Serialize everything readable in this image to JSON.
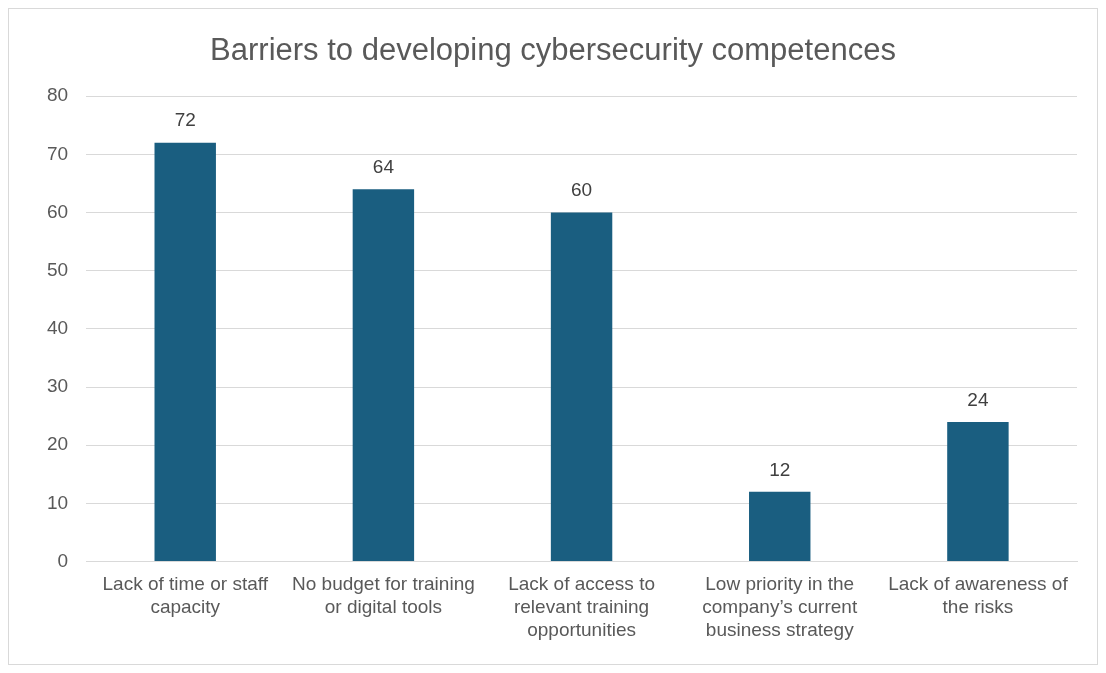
{
  "chart_data": {
    "type": "bar",
    "title": "Barriers to developing cybersecurity competences",
    "categories": [
      "Lack of time or staff capacity",
      "No budget for training or digital tools",
      "Lack of access to relevant training opportunities",
      "Low priority in the company’s current business strategy",
      "Lack of awareness of the risks"
    ],
    "values": [
      72,
      64,
      60,
      12,
      24
    ],
    "color": "#1a5e80",
    "ylim": [
      0,
      80
    ],
    "yticks": [
      0,
      10,
      20,
      30,
      40,
      50,
      60,
      70,
      80
    ],
    "grid": "y",
    "data_labels": true
  }
}
